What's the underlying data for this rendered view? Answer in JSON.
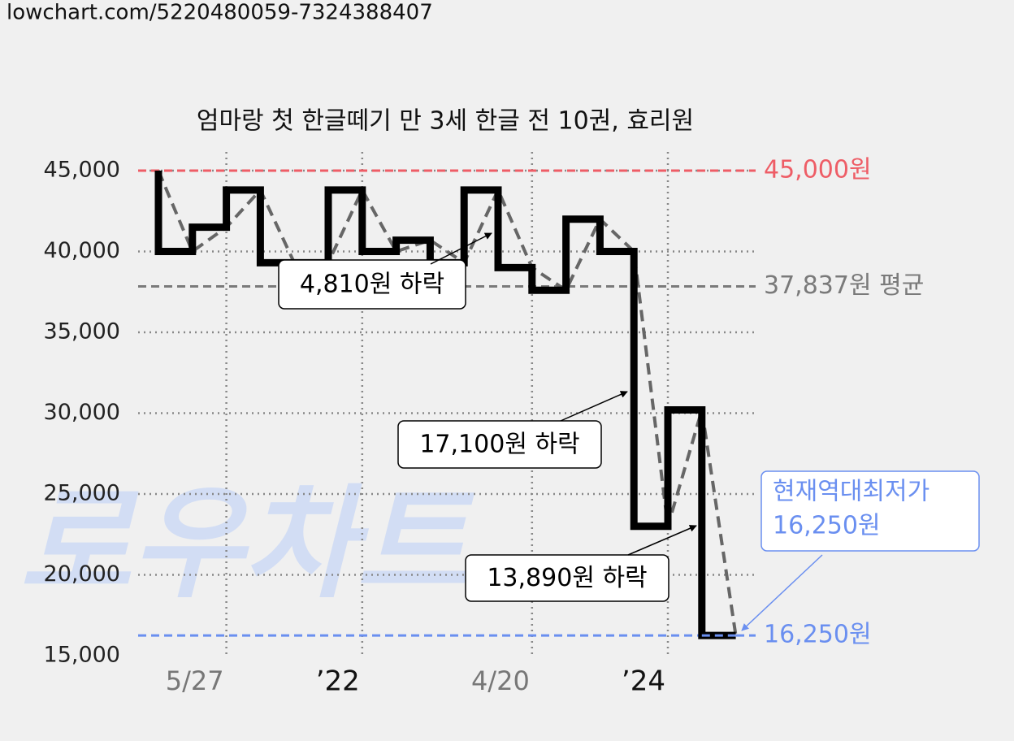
{
  "header": {
    "url": "lowchart.com/5220480059-7324388407"
  },
  "watermark": "로우차트",
  "chart_data": {
    "type": "step",
    "title": "엄마랑 첫 한글떼기 만 3세 한글 전 10권, 효리원",
    "categories": [
      null,
      null,
      "5/27",
      null,
      null,
      null,
      "’22",
      null,
      null,
      null,
      null,
      "4/20",
      null,
      null,
      null,
      "’24",
      null,
      null
    ],
    "series": [
      {
        "color": "#000000",
        "values": [
          45000,
          40000,
          41500,
          43800,
          39300,
          39300,
          43800,
          40000,
          40700,
          39300,
          43800,
          39000,
          37600,
          42000,
          40000,
          23000,
          30200,
          16250
        ]
      }
    ],
    "ylim": [
      15000,
      45000
    ],
    "yticks": [
      {
        "value": 15000,
        "label": "15,000"
      },
      {
        "value": 20000,
        "label": "20,000"
      },
      {
        "value": 25000,
        "label": "25,000"
      },
      {
        "value": 30000,
        "label": "30,000"
      },
      {
        "value": 35000,
        "label": "35,000"
      },
      {
        "value": 40000,
        "label": "40,000"
      },
      {
        "value": 45000,
        "label": "45,000"
      }
    ],
    "grid": true,
    "reference_lines": [
      {
        "value": 45000,
        "label": "45,000원",
        "color": "#ee5d66"
      },
      {
        "value": 37837,
        "label": "37,837원 평균",
        "color": "#7a7a7a"
      },
      {
        "value": 16250,
        "label": "16,250원",
        "color": "#6a8ff0"
      }
    ],
    "annotations": [
      {
        "text": "4,810원 하락"
      },
      {
        "text": "17,100원 하락"
      },
      {
        "text": "13,890원 하락"
      },
      {
        "lines": [
          "현재역대최저가",
          "16,250원"
        ],
        "color": "#6a8ff0"
      }
    ]
  }
}
